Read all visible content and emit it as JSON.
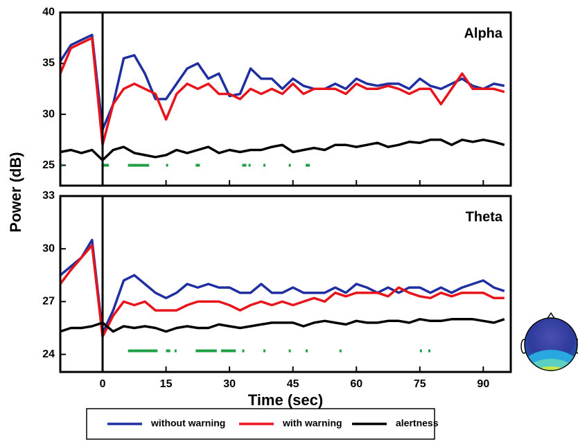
{
  "chart_data": [
    {
      "type": "line",
      "title": "Alpha",
      "ylabel": "Power (dB)",
      "xlim": [
        -10,
        96.5
      ],
      "ylim": [
        23,
        40
      ],
      "yticks": [
        25,
        30,
        35,
        40
      ],
      "x": [
        -10,
        -7.5,
        -5,
        -2.5,
        0,
        2.5,
        5,
        7.5,
        10,
        12.5,
        15,
        17.5,
        20,
        22.5,
        25,
        27.5,
        30,
        32.5,
        35,
        37.5,
        40,
        42.5,
        45,
        47.5,
        50,
        52.5,
        55,
        57.5,
        60,
        62.5,
        65,
        67.5,
        70,
        72.5,
        75,
        77.5,
        80,
        82.5,
        85,
        87.5,
        90,
        92.5,
        95
      ],
      "series": [
        {
          "name": "without warning",
          "color": "#1f2fa0",
          "values": [
            35.2,
            36.8,
            37.3,
            37.8,
            28.5,
            31,
            35.5,
            35.8,
            34,
            31.5,
            31.5,
            33,
            34.5,
            35,
            33.5,
            34,
            31.8,
            32,
            34.5,
            33.5,
            33.5,
            32.5,
            33.5,
            32.8,
            32.5,
            32.5,
            33,
            32.5,
            33.5,
            33,
            32.8,
            33,
            33,
            32.5,
            33.5,
            32.8,
            32.5,
            33,
            33.5,
            32.8,
            32.5,
            33,
            32.8
          ]
        },
        {
          "name": "with warning",
          "color": "#e8141c",
          "values": [
            34,
            36.5,
            37,
            37.5,
            27,
            31,
            32.5,
            33,
            32.5,
            32,
            29.5,
            32,
            33,
            32.5,
            33,
            32,
            32,
            31.5,
            32.5,
            32,
            32.5,
            32,
            33,
            32,
            32.5,
            32.5,
            32.5,
            32,
            33,
            32.5,
            32.5,
            32.8,
            32.5,
            32,
            32.5,
            32.5,
            31,
            32.5,
            34,
            32.5,
            32.5,
            32.5,
            32.2
          ]
        },
        {
          "name": "alertness",
          "color": "#000000",
          "values": [
            26.3,
            26.5,
            26.2,
            26.5,
            25.5,
            26.5,
            26.8,
            26.2,
            26,
            25.8,
            26,
            26.5,
            26.2,
            26.5,
            26.8,
            26.2,
            26.5,
            26.3,
            26.5,
            26.5,
            26.8,
            27,
            26.3,
            26.5,
            26.7,
            26.5,
            27,
            27,
            26.8,
            27,
            27.2,
            26.8,
            27,
            27.3,
            27.2,
            27.5,
            27.5,
            27,
            27.5,
            27.3,
            27.5,
            27.3,
            27
          ]
        }
      ],
      "significance_y": 25,
      "significance_color": "#1fa045",
      "significance": [
        [
          -10,
          -9.5
        ],
        [
          0,
          1.5
        ],
        [
          6,
          11
        ],
        [
          15,
          15.5
        ],
        [
          22,
          23
        ],
        [
          33,
          34
        ],
        [
          34.5,
          35
        ],
        [
          38,
          38.5
        ],
        [
          44,
          44.5
        ],
        [
          48,
          49
        ]
      ]
    },
    {
      "type": "line",
      "title": "Theta",
      "xlabel": "Time (sec)",
      "xlim": [
        -10,
        96.5
      ],
      "ylim": [
        23,
        33
      ],
      "yticks": [
        24,
        27,
        30,
        33
      ],
      "xticks": [
        0,
        15,
        30,
        45,
        60,
        75,
        90
      ],
      "x": [
        -10,
        -7.5,
        -5,
        -2.5,
        0,
        2.5,
        5,
        7.5,
        10,
        12.5,
        15,
        17.5,
        20,
        22.5,
        25,
        27.5,
        30,
        32.5,
        35,
        37.5,
        40,
        42.5,
        45,
        47.5,
        50,
        52.5,
        55,
        57.5,
        60,
        62.5,
        65,
        67.5,
        70,
        72.5,
        75,
        77.5,
        80,
        82.5,
        85,
        87.5,
        90,
        92.5,
        95
      ],
      "series": [
        {
          "color": "#1f2fa0",
          "values": [
            28.5,
            29,
            29.5,
            30.5,
            25.2,
            26.5,
            28.2,
            28.5,
            28,
            27.5,
            27.2,
            27.5,
            28,
            27.8,
            28,
            27.8,
            27.8,
            27.5,
            27.5,
            28,
            27.5,
            27.5,
            27.8,
            27.5,
            27.5,
            27.5,
            27.8,
            27.5,
            28,
            27.8,
            27.5,
            27.8,
            27.5,
            27.8,
            27.8,
            27.5,
            27.8,
            27.5,
            27.8,
            28,
            28.2,
            27.8,
            27.6
          ]
        },
        {
          "color": "#e8141c",
          "values": [
            28,
            28.8,
            29.5,
            30.2,
            25,
            26.2,
            27,
            26.8,
            27,
            26.5,
            26.5,
            26.5,
            26.8,
            27,
            27,
            27,
            26.8,
            26.5,
            26.8,
            27,
            26.8,
            27,
            26.8,
            27,
            27.2,
            27,
            27.5,
            27.3,
            27.5,
            27.5,
            27.5,
            27.3,
            27.8,
            27.5,
            27.3,
            27.2,
            27.5,
            27.3,
            27.5,
            27.5,
            27.5,
            27.2,
            27.2
          ]
        },
        {
          "color": "#000000",
          "values": [
            25.3,
            25.5,
            25.5,
            25.6,
            25.8,
            25.3,
            25.6,
            25.5,
            25.6,
            25.5,
            25.3,
            25.5,
            25.6,
            25.5,
            25.5,
            25.7,
            25.6,
            25.5,
            25.6,
            25.7,
            25.8,
            25.8,
            25.8,
            25.6,
            25.8,
            25.9,
            25.8,
            25.7,
            25.9,
            25.8,
            25.8,
            25.9,
            25.9,
            25.8,
            26,
            25.9,
            25.9,
            26,
            26,
            26,
            25.9,
            25.8,
            26
          ]
        }
      ],
      "significance_y": 24.2,
      "significance_color": "#1fa045",
      "significance": [
        [
          6,
          13
        ],
        [
          15,
          16
        ],
        [
          17,
          17.5
        ],
        [
          22,
          27
        ],
        [
          28,
          31.5
        ],
        [
          33,
          33.5
        ],
        [
          38,
          38.5
        ],
        [
          44,
          44.5
        ],
        [
          48,
          48.5
        ],
        [
          56,
          56.5
        ],
        [
          75,
          75.5
        ],
        [
          77,
          77.5
        ]
      ]
    }
  ]
}
